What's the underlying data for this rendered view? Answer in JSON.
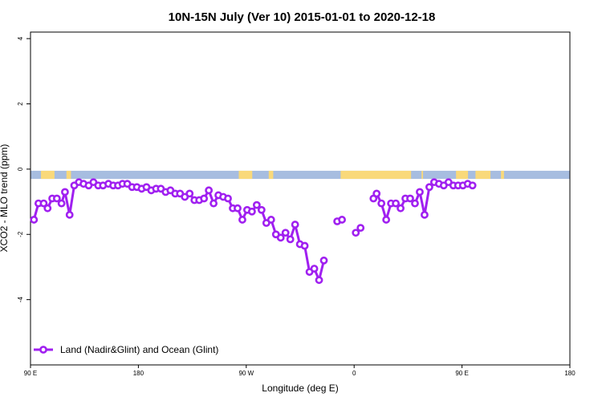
{
  "chart_data": {
    "type": "line",
    "title": "10N-15N July (Ver 10)   2015-01-01 to 2020-12-18",
    "xlabel": "Longitude (deg E)",
    "ylabel": "XCO2 - MLO trend (ppm)",
    "xlim": [
      90,
      450
    ],
    "ylim": [
      -6,
      4.2
    ],
    "xticks": [
      {
        "value": 90,
        "label": "90 E"
      },
      {
        "value": 162,
        "label": "180"
      },
      {
        "value": 234,
        "label": "90 W"
      },
      {
        "value": 306,
        "label": "0"
      },
      {
        "value": 378,
        "label": "90 E"
      },
      {
        "value": 450,
        "label": "180"
      }
    ],
    "yticks": [
      {
        "value": -4,
        "label": "-4"
      },
      {
        "value": -2,
        "label": "-2"
      },
      {
        "value": 0,
        "label": "0"
      },
      {
        "value": 2,
        "label": "2"
      },
      {
        "value": 4,
        "label": "4"
      }
    ],
    "grid": false,
    "legend": {
      "position": "bottom-left"
    },
    "land_band": {
      "color_ocean": "#a7bde0",
      "color_land": "#f9d97a",
      "y_range": [
        -0.3,
        -0.05
      ],
      "land_segments": [
        [
          97,
          106
        ],
        [
          114,
          117
        ],
        [
          229,
          238
        ],
        [
          249,
          252
        ],
        [
          297,
          344
        ],
        [
          351,
          352
        ],
        [
          374,
          382
        ],
        [
          387,
          397
        ],
        [
          404,
          406
        ]
      ]
    },
    "series": [
      {
        "name": "Land (Nadir&Glint) and Ocean (Glint)",
        "color": "#a020f0",
        "points": [
          [
            92.3,
            -1.55
          ],
          [
            95.3,
            -1.05
          ],
          [
            98.8,
            -1.05
          ],
          [
            101.4,
            -1.2
          ],
          [
            104.5,
            -0.9
          ],
          [
            107.6,
            -0.9
          ],
          [
            110.7,
            -1.05
          ],
          [
            113.0,
            -0.7
          ],
          [
            116.1,
            -1.4
          ],
          [
            119.2,
            -0.5
          ],
          [
            122.3,
            -0.4
          ],
          [
            125.4,
            -0.45
          ],
          [
            128.8,
            -0.5
          ],
          [
            132.0,
            -0.4
          ],
          [
            135.2,
            -0.5
          ],
          [
            138.4,
            -0.5
          ],
          [
            142.0,
            -0.45
          ],
          [
            145.2,
            -0.5
          ],
          [
            148.4,
            -0.5
          ],
          [
            151.4,
            -0.45
          ],
          [
            154.6,
            -0.45
          ],
          [
            157.8,
            -0.55
          ],
          [
            161.0,
            -0.55
          ],
          [
            164.2,
            -0.6
          ],
          [
            167.4,
            -0.55
          ],
          [
            170.6,
            -0.65
          ],
          [
            173.8,
            -0.6
          ],
          [
            177.0,
            -0.6
          ],
          [
            180.2,
            -0.7
          ],
          [
            183.4,
            -0.65
          ],
          [
            186.6,
            -0.75
          ],
          [
            189.8,
            -0.75
          ],
          [
            193.0,
            -0.85
          ],
          [
            196.2,
            -0.75
          ],
          [
            199.4,
            -0.95
          ],
          [
            202.6,
            -0.95
          ],
          [
            205.8,
            -0.9
          ],
          [
            209.0,
            -0.65
          ],
          [
            212.2,
            -1.05
          ],
          [
            215.4,
            -0.8
          ],
          [
            218.6,
            -0.85
          ],
          [
            221.8,
            -0.9
          ],
          [
            225.0,
            -1.2
          ],
          [
            228.2,
            -1.2
          ],
          [
            231.4,
            -1.55
          ],
          [
            234.6,
            -1.25
          ],
          [
            237.8,
            -1.3
          ],
          [
            241.0,
            -1.1
          ],
          [
            244.2,
            -1.25
          ],
          [
            247.4,
            -1.65
          ],
          [
            250.6,
            -1.55
          ],
          [
            253.8,
            -2.0
          ],
          [
            257.0,
            -2.1
          ],
          [
            260.2,
            -1.95
          ],
          [
            263.4,
            -2.15
          ],
          [
            266.6,
            -1.7
          ],
          [
            269.8,
            -2.3
          ],
          [
            273.0,
            -2.35
          ],
          [
            276.2,
            -3.15
          ],
          [
            279.4,
            -3.05
          ],
          [
            282.6,
            -3.4
          ],
          [
            285.8,
            -2.8
          ],
          [
            null,
            null
          ],
          [
            294.7,
            -1.6
          ],
          [
            297.9,
            -1.55
          ],
          [
            null,
            null
          ],
          [
            307.1,
            -1.95
          ],
          [
            310.3,
            -1.8
          ],
          [
            null,
            null
          ],
          [
            318.9,
            -0.9
          ],
          [
            321.0,
            -0.75
          ],
          [
            324.2,
            -1.05
          ],
          [
            327.4,
            -1.55
          ],
          [
            330.6,
            -1.05
          ],
          [
            333.8,
            -1.05
          ],
          [
            337.0,
            -1.2
          ],
          [
            340.2,
            -0.9
          ],
          [
            343.4,
            -0.9
          ],
          [
            346.6,
            -1.05
          ],
          [
            349.8,
            -0.7
          ],
          [
            353.0,
            -1.4
          ],
          [
            356.2,
            -0.55
          ],
          [
            359.4,
            -0.4
          ],
          [
            362.6,
            -0.45
          ],
          [
            365.8,
            -0.5
          ],
          [
            369.0,
            -0.4
          ],
          [
            372.2,
            -0.5
          ],
          [
            375.4,
            -0.5
          ],
          [
            378.6,
            -0.5
          ],
          [
            381.8,
            -0.45
          ],
          [
            385.0,
            -0.5
          ]
        ]
      }
    ]
  }
}
